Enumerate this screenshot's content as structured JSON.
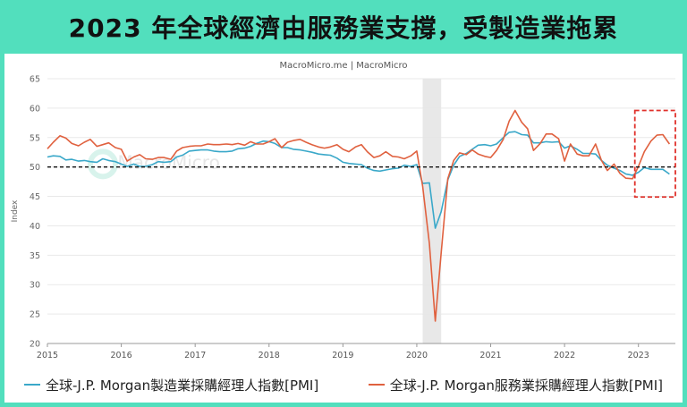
{
  "title": "2023 年全球經濟由服務業支撐，受製造業拖累",
  "source": "MacroMicro.me | MacroMicro",
  "watermark": "MacroMicro",
  "colors": {
    "manufacturing": "#3aa8c9",
    "services": "#e0613f",
    "reference_line": "#111111",
    "highlight_box": "#e0312b",
    "shade": "#e6e6e6"
  },
  "chart_data": {
    "type": "line",
    "ylabel": "Index",
    "ylim": [
      20,
      65
    ],
    "yticks": [
      20,
      25,
      30,
      35,
      40,
      45,
      50,
      55,
      60,
      65
    ],
    "xlim": [
      2015.0,
      2023.5
    ],
    "xticks": [
      "2015",
      "2016",
      "2017",
      "2018",
      "2019",
      "2020",
      "2021",
      "2022",
      "2023"
    ],
    "reference_line": 50,
    "shaded_period": [
      2020.08,
      2020.33
    ],
    "highlight_period": [
      2023.0,
      2023.5
    ],
    "series": [
      {
        "name": "全球-J.P. Morgan製造業採購經理人指數[PMI]",
        "x": [
          2015.0,
          2015.08,
          2015.17,
          2015.25,
          2015.33,
          2015.42,
          2015.5,
          2015.58,
          2015.67,
          2015.75,
          2015.83,
          2015.92,
          2016.0,
          2016.08,
          2016.17,
          2016.25,
          2016.33,
          2016.42,
          2016.5,
          2016.58,
          2016.67,
          2016.75,
          2016.83,
          2016.92,
          2017.0,
          2017.08,
          2017.17,
          2017.25,
          2017.33,
          2017.42,
          2017.5,
          2017.58,
          2017.67,
          2017.75,
          2017.83,
          2017.92,
          2018.0,
          2018.08,
          2018.17,
          2018.25,
          2018.33,
          2018.42,
          2018.5,
          2018.58,
          2018.67,
          2018.75,
          2018.83,
          2018.92,
          2019.0,
          2019.08,
          2019.17,
          2019.25,
          2019.33,
          2019.42,
          2019.5,
          2019.58,
          2019.67,
          2019.75,
          2019.83,
          2019.92,
          2020.0,
          2020.08,
          2020.17,
          2020.25,
          2020.33,
          2020.42,
          2020.5,
          2020.58,
          2020.67,
          2020.75,
          2020.83,
          2020.92,
          2021.0,
          2021.08,
          2021.17,
          2021.25,
          2021.33,
          2021.42,
          2021.5,
          2021.58,
          2021.67,
          2021.75,
          2021.83,
          2021.92,
          2022.0,
          2022.08,
          2022.17,
          2022.25,
          2022.33,
          2022.42,
          2022.5,
          2022.58,
          2022.67,
          2022.75,
          2022.83,
          2022.92,
          2023.0,
          2023.08,
          2023.17,
          2023.25,
          2023.33,
          2023.42
        ],
        "values": [
          51.7,
          51.9,
          51.8,
          51.2,
          51.3,
          51.0,
          51.1,
          50.9,
          50.8,
          51.4,
          51.1,
          50.9,
          50.5,
          50.1,
          50.5,
          50.1,
          50.1,
          50.4,
          50.9,
          50.8,
          50.9,
          51.7,
          52.0,
          52.7,
          52.8,
          52.9,
          52.9,
          52.7,
          52.6,
          52.6,
          52.7,
          53.1,
          53.2,
          53.5,
          54.0,
          54.4,
          54.3,
          54.0,
          53.3,
          53.3,
          53.0,
          52.9,
          52.7,
          52.5,
          52.2,
          52.1,
          52.0,
          51.5,
          50.8,
          50.6,
          50.5,
          50.4,
          49.8,
          49.4,
          49.3,
          49.5,
          49.7,
          49.8,
          50.3,
          50.1,
          50.4,
          47.2,
          47.3,
          39.6,
          42.4,
          47.8,
          50.3,
          51.8,
          52.3,
          53.0,
          53.7,
          53.8,
          53.6,
          53.9,
          55.0,
          55.9,
          56.0,
          55.5,
          55.4,
          54.1,
          54.1,
          54.3,
          54.2,
          54.3,
          53.2,
          53.6,
          53.0,
          52.3,
          52.3,
          52.2,
          51.1,
          50.3,
          49.8,
          49.4,
          48.8,
          48.6,
          49.1,
          49.9,
          49.6,
          49.6,
          49.6,
          48.8
        ]
      },
      {
        "name": "全球-J.P. Morgan服務業採購經理人指數[PMI]",
        "x": [
          2015.0,
          2015.08,
          2015.17,
          2015.25,
          2015.33,
          2015.42,
          2015.5,
          2015.58,
          2015.67,
          2015.75,
          2015.83,
          2015.92,
          2016.0,
          2016.08,
          2016.17,
          2016.25,
          2016.33,
          2016.42,
          2016.5,
          2016.58,
          2016.67,
          2016.75,
          2016.83,
          2016.92,
          2017.0,
          2017.08,
          2017.17,
          2017.25,
          2017.33,
          2017.42,
          2017.5,
          2017.58,
          2017.67,
          2017.75,
          2017.83,
          2017.92,
          2018.0,
          2018.08,
          2018.17,
          2018.25,
          2018.33,
          2018.42,
          2018.5,
          2018.58,
          2018.67,
          2018.75,
          2018.83,
          2018.92,
          2019.0,
          2019.08,
          2019.17,
          2019.25,
          2019.33,
          2019.42,
          2019.5,
          2019.58,
          2019.67,
          2019.75,
          2019.83,
          2019.92,
          2020.0,
          2020.08,
          2020.17,
          2020.25,
          2020.33,
          2020.42,
          2020.5,
          2020.58,
          2020.67,
          2020.75,
          2020.83,
          2020.92,
          2021.0,
          2021.08,
          2021.17,
          2021.25,
          2021.33,
          2021.42,
          2021.5,
          2021.58,
          2021.67,
          2021.75,
          2021.83,
          2021.92,
          2022.0,
          2022.08,
          2022.17,
          2022.25,
          2022.33,
          2022.42,
          2022.5,
          2022.58,
          2022.67,
          2022.75,
          2022.83,
          2022.92,
          2023.0,
          2023.08,
          2023.17,
          2023.25,
          2023.33,
          2023.42
        ],
        "values": [
          53.1,
          54.2,
          55.3,
          54.9,
          54.0,
          53.6,
          54.2,
          54.7,
          53.5,
          53.8,
          54.1,
          53.3,
          53.0,
          51.0,
          51.7,
          52.1,
          51.4,
          51.3,
          51.6,
          51.6,
          51.3,
          52.7,
          53.3,
          53.5,
          53.6,
          53.6,
          53.9,
          53.8,
          53.8,
          53.9,
          53.8,
          54.0,
          53.7,
          54.3,
          53.9,
          53.9,
          54.3,
          54.8,
          53.3,
          54.2,
          54.5,
          54.7,
          54.2,
          53.8,
          53.4,
          53.2,
          53.4,
          53.8,
          53.0,
          52.6,
          53.4,
          53.8,
          52.6,
          51.6,
          51.9,
          52.6,
          51.8,
          51.7,
          51.4,
          51.9,
          52.7,
          46.7,
          37.0,
          23.8,
          35.4,
          48.0,
          51.1,
          52.4,
          52.1,
          52.9,
          52.2,
          51.8,
          51.6,
          52.8,
          54.7,
          57.8,
          59.6,
          57.6,
          56.5,
          52.8,
          54.0,
          55.6,
          55.6,
          54.8,
          51.0,
          53.9,
          52.2,
          51.9,
          51.9,
          53.9,
          51.1,
          49.4,
          50.5,
          48.9,
          48.1,
          48.0,
          50.1,
          52.6,
          54.4,
          55.4,
          55.5,
          53.9
        ]
      }
    ]
  },
  "legend": {
    "manufacturing_label": "全球-J.P. Morgan製造業採購經理人指數[PMI]",
    "services_label": "全球-J.P. Morgan服務業採購經理人指數[PMI]"
  }
}
